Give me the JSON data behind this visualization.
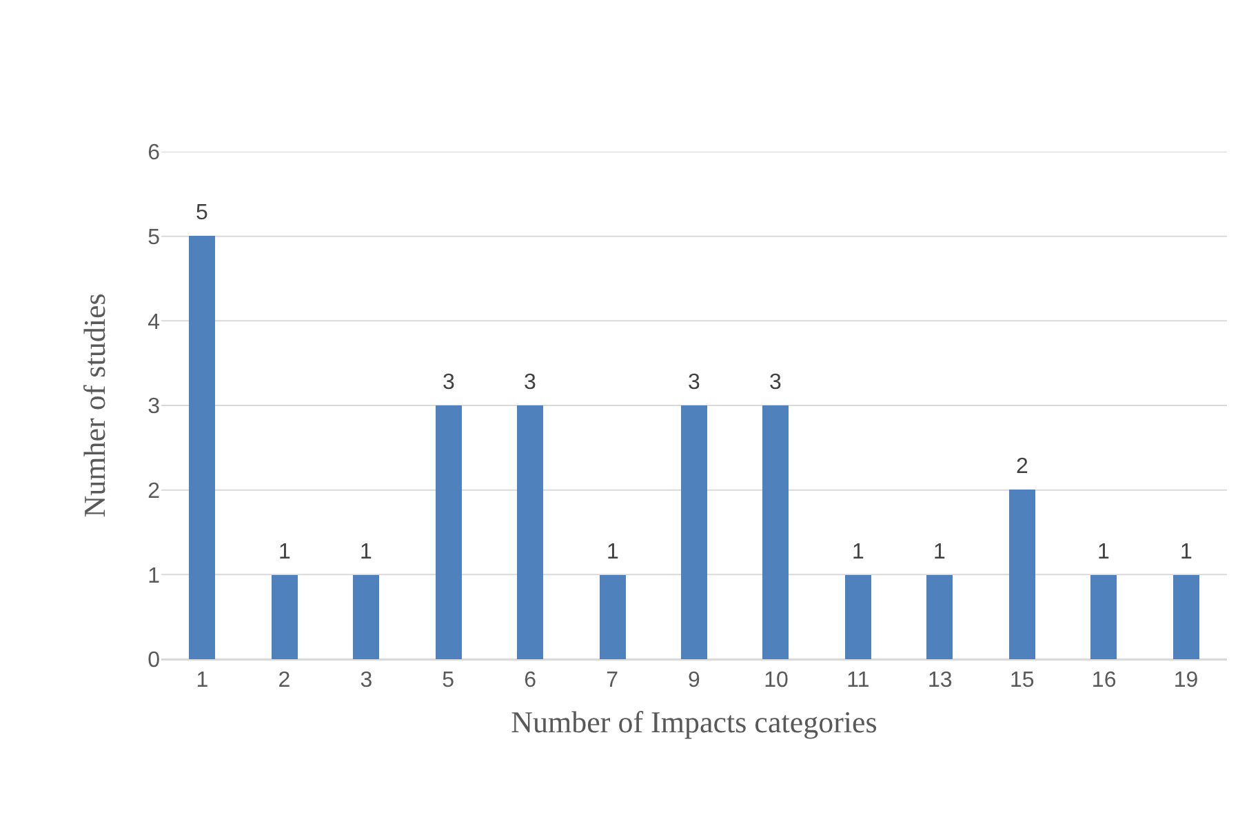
{
  "chart_data": {
    "type": "bar",
    "xlabel": "Number of Impacts categories",
    "ylabel": "Numher of studies",
    "categories": [
      "1",
      "2",
      "3",
      "5",
      "6",
      "7",
      "9",
      "10",
      "11",
      "13",
      "15",
      "16",
      "19"
    ],
    "values": [
      5,
      1,
      1,
      3,
      3,
      1,
      3,
      3,
      1,
      1,
      2,
      1,
      1
    ],
    "color": "#4f81bd",
    "ylim": [
      0,
      6
    ],
    "yticks": [
      0,
      1,
      2,
      3,
      4,
      5,
      6
    ],
    "grid": "y",
    "legend": false,
    "data_labels": true
  }
}
